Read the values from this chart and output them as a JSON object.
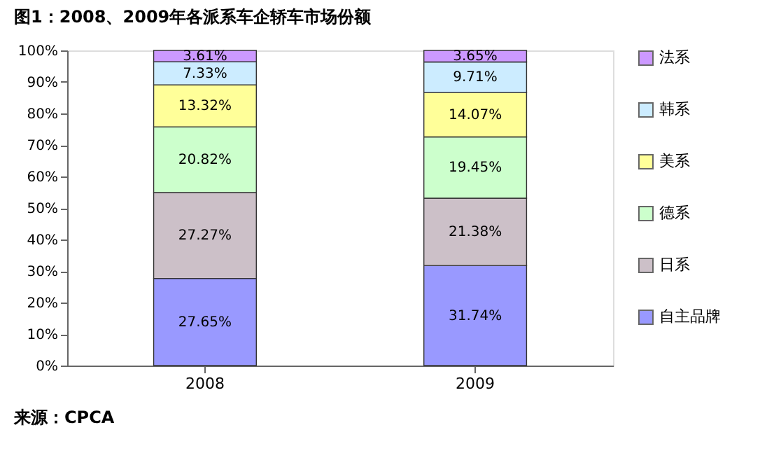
{
  "chart_data": {
    "type": "bar",
    "stacked": true,
    "title": "图1：2008、2009年各派系车企轿车市场份额",
    "categories": [
      "2008",
      "2009"
    ],
    "series": [
      {
        "name": "自主品牌",
        "color": "#9999ff",
        "values": [
          27.65,
          31.74
        ],
        "value_labels": [
          "27.65%",
          "31.74%"
        ]
      },
      {
        "name": "日系",
        "color": "#ccc0c8",
        "values": [
          27.27,
          21.38
        ],
        "value_labels": [
          "27.27%",
          "21.38%"
        ]
      },
      {
        "name": "德系",
        "color": "#ccffcc",
        "values": [
          20.82,
          19.45
        ],
        "value_labels": [
          "20.82%",
          "19.45%"
        ]
      },
      {
        "name": "美系",
        "color": "#ffff99",
        "values": [
          13.32,
          14.07
        ],
        "value_labels": [
          "13.32%",
          "14.07%"
        ]
      },
      {
        "name": "韩系",
        "color": "#ccecff",
        "values": [
          7.33,
          9.71
        ],
        "value_labels": [
          "7.33%",
          "9.71%"
        ]
      },
      {
        "name": "法系",
        "color": "#cc99ff",
        "values": [
          3.61,
          3.65
        ],
        "value_labels": [
          "3.61%",
          "3.65%"
        ]
      }
    ],
    "ylim": [
      0,
      100
    ],
    "yticks": [
      {
        "value": 0,
        "label": "0%"
      },
      {
        "value": 10,
        "label": "10%"
      },
      {
        "value": 20,
        "label": "20%"
      },
      {
        "value": 30,
        "label": "30%"
      },
      {
        "value": 40,
        "label": "40%"
      },
      {
        "value": 50,
        "label": "50%"
      },
      {
        "value": 60,
        "label": "60%"
      },
      {
        "value": 70,
        "label": "70%"
      },
      {
        "value": 80,
        "label": "80%"
      },
      {
        "value": 90,
        "label": "90%"
      },
      {
        "value": 100,
        "label": "100%"
      }
    ],
    "grid": false,
    "legend": "right",
    "marker": "square",
    "annotations": [
      "来源：CPCA"
    ]
  }
}
